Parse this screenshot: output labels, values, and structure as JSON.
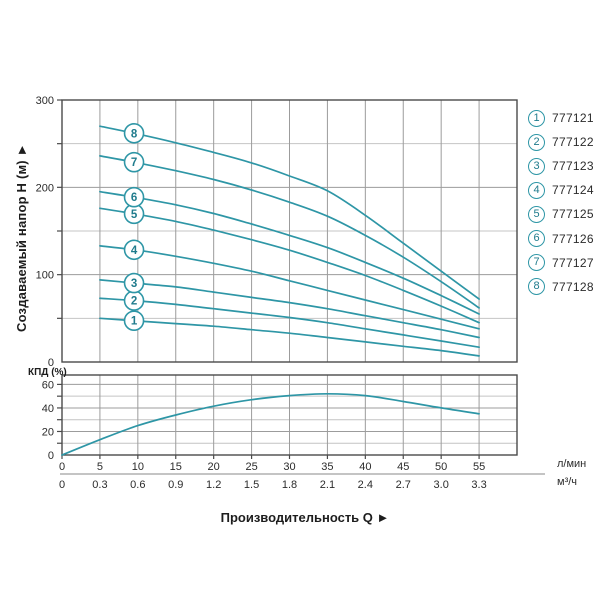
{
  "colors": {
    "curve": "#2e96a6",
    "curve_label_text": "#1f7b8c",
    "grid_major": "#9c9c9c",
    "grid_minor": "#c4c4c4",
    "plot_border": "#4a4a4a",
    "tick_text": "#2b2b2b",
    "title_text": "#1d1d1d"
  },
  "titles": {
    "y_axis": "Создаваемый напор H (м) ►",
    "x_axis": "Производительность Q ►",
    "efficiency_axis": "КПД (%)"
  },
  "units": {
    "flow_lmin": "л/мин",
    "flow_m3h": "м³/ч"
  },
  "legend": {
    "items": [
      {
        "num": "1",
        "model": "777121"
      },
      {
        "num": "2",
        "model": "777122"
      },
      {
        "num": "3",
        "model": "777123"
      },
      {
        "num": "4",
        "model": "777124"
      },
      {
        "num": "5",
        "model": "777125"
      },
      {
        "num": "6",
        "model": "777126"
      },
      {
        "num": "7",
        "model": "777127"
      },
      {
        "num": "8",
        "model": "777128"
      }
    ]
  },
  "chart_data": [
    {
      "type": "line",
      "title": "Pump head curves",
      "xlabel": "Производительность Q",
      "ylabel": "Создаваемый напор H (м)",
      "xlim": [
        0,
        60
      ],
      "ylim": [
        0,
        300
      ],
      "x_ticks_major": [
        0,
        5,
        10,
        15,
        20,
        25,
        30,
        35,
        40,
        45,
        50,
        55,
        60
      ],
      "y_ticks_labeled": [
        0,
        100,
        200,
        300
      ],
      "y_ticks_minor": [
        50,
        150,
        250
      ],
      "grid": true,
      "legend_position": "right-outside",
      "x": [
        5,
        10,
        15,
        20,
        25,
        30,
        35,
        40,
        45,
        50,
        55
      ],
      "series": [
        {
          "name": "1",
          "model": "777121",
          "values": [
            50,
            47,
            44,
            41,
            37,
            33,
            28,
            23,
            18,
            13,
            7
          ]
        },
        {
          "name": "2",
          "model": "777122",
          "values": [
            73,
            70,
            66,
            61,
            56,
            51,
            45,
            38,
            31,
            24,
            17
          ]
        },
        {
          "name": "3",
          "model": "777123",
          "values": [
            94,
            90,
            86,
            80,
            74,
            68,
            61,
            53,
            45,
            37,
            28
          ]
        },
        {
          "name": "4",
          "model": "777124",
          "values": [
            133,
            128,
            121,
            113,
            104,
            93,
            82,
            71,
            60,
            49,
            38
          ]
        },
        {
          "name": "5",
          "model": "777125",
          "values": [
            176,
            169,
            161,
            151,
            140,
            128,
            114,
            99,
            82,
            64,
            45
          ]
        },
        {
          "name": "6",
          "model": "777126",
          "values": [
            195,
            188,
            180,
            170,
            158,
            145,
            131,
            114,
            96,
            76,
            55
          ]
        },
        {
          "name": "7",
          "model": "777127",
          "values": [
            236,
            228,
            219,
            209,
            197,
            183,
            167,
            145,
            120,
            92,
            62
          ]
        },
        {
          "name": "8",
          "model": "777128",
          "values": [
            270,
            261,
            251,
            240,
            228,
            213,
            196,
            168,
            136,
            104,
            72
          ]
        }
      ],
      "curve_label_q": 9.5
    },
    {
      "type": "line",
      "title": "Efficiency curve",
      "xlabel": "Производительность Q",
      "ylabel": "КПД (%)",
      "xlim": [
        0,
        60
      ],
      "ylim": [
        0,
        68
      ],
      "y_ticks_labeled": [
        0,
        20,
        40,
        60
      ],
      "y_ticks_minor": [
        10,
        30,
        50
      ],
      "grid": true,
      "x": [
        0,
        5,
        10,
        15,
        20,
        25,
        30,
        35,
        40,
        45,
        50,
        55
      ],
      "values": [
        0,
        13,
        25,
        34,
        41.5,
        47,
        50.5,
        52,
        50.5,
        45.5,
        40,
        35
      ]
    }
  ],
  "x_axis_rows": {
    "lmin_labels": [
      "0",
      "5",
      "10",
      "15",
      "20",
      "25",
      "30",
      "35",
      "40",
      "45",
      "50",
      "55"
    ],
    "m3h_labels": [
      "0",
      "0.3",
      "0.6",
      "0.9",
      "1.2",
      "1.5",
      "1.8",
      "2.1",
      "2.4",
      "2.7",
      "3.0",
      "3.3"
    ]
  },
  "head_y_labels": [
    "0",
    "100",
    "200",
    "300"
  ],
  "eff_y_labels": [
    "0",
    "20",
    "40",
    "60"
  ]
}
